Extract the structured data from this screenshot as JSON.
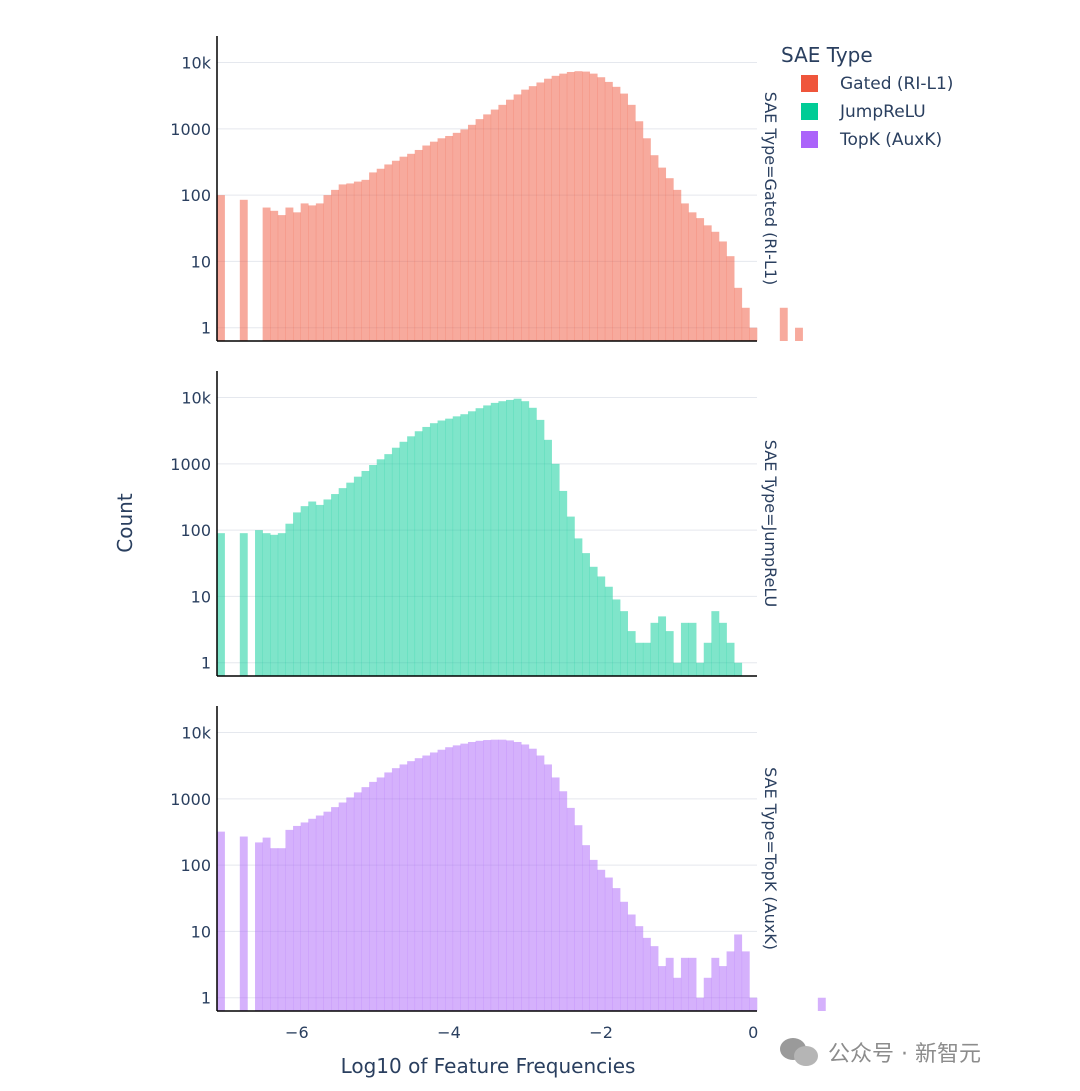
{
  "chart_data": {
    "type": "bar",
    "xlabel": "Log10 of Feature Frequencies",
    "ylabel": "Count",
    "xlim": [
      -7.05,
      0.05
    ],
    "ylim_log10": [
      -0.2,
      4.4
    ],
    "y_scale": "log",
    "x_ticks": [
      {
        "v": -6,
        "label": "−6"
      },
      {
        "v": -4,
        "label": "−4"
      },
      {
        "v": -2,
        "label": "−2"
      },
      {
        "v": 0,
        "label": "0"
      }
    ],
    "y_ticks": [
      {
        "v": 1,
        "label": "1"
      },
      {
        "v": 10,
        "label": "10"
      },
      {
        "v": 100,
        "label": "100"
      },
      {
        "v": 1000,
        "label": "1000"
      },
      {
        "v": 10000,
        "label": "10k"
      }
    ],
    "bin_start": -7.05,
    "bin_width": 0.1,
    "legend": {
      "title": "SAE Type",
      "position": "top-right"
    },
    "series": [
      {
        "name": "Gated (RI-L1)",
        "facet_label": "SAE Type=Gated (RI-L1)",
        "color": "#EF553B",
        "values": [
          100,
          0,
          0,
          85,
          0,
          0,
          65,
          58,
          50,
          65,
          55,
          75,
          70,
          75,
          100,
          120,
          145,
          150,
          160,
          170,
          220,
          250,
          290,
          330,
          380,
          420,
          480,
          560,
          640,
          720,
          780,
          870,
          980,
          1150,
          1400,
          1650,
          1950,
          2300,
          2750,
          3300,
          3900,
          4400,
          5000,
          5700,
          6300,
          6800,
          7200,
          7400,
          7300,
          6800,
          6000,
          5100,
          4300,
          3400,
          2300,
          1300,
          720,
          400,
          260,
          180,
          120,
          75,
          55,
          45,
          35,
          28,
          20,
          12,
          4,
          2,
          1,
          0,
          0,
          0,
          2,
          0,
          1,
          0,
          0,
          0
        ]
      },
      {
        "name": "JumpReLU",
        "facet_label": "SAE Type=JumpReLU",
        "color": "#00CC96",
        "values": [
          90,
          0,
          0,
          90,
          0,
          100,
          90,
          85,
          90,
          125,
          185,
          230,
          270,
          240,
          290,
          350,
          430,
          520,
          640,
          780,
          960,
          1170,
          1400,
          1750,
          2150,
          2600,
          3100,
          3600,
          4100,
          4500,
          4800,
          5200,
          5600,
          6200,
          6900,
          7600,
          8300,
          8800,
          9200,
          9600,
          8800,
          7000,
          4600,
          2300,
          1000,
          390,
          160,
          75,
          45,
          28,
          20,
          14,
          9,
          6,
          3,
          2,
          2,
          4,
          5,
          3,
          1,
          4,
          4,
          1,
          2,
          6,
          4,
          2,
          1
        ]
      },
      {
        "name": "TopK (AuxK)",
        "facet_label": "SAE Type=TopK (AuxK)",
        "color": "#AB63FA",
        "values": [
          320,
          0,
          0,
          270,
          0,
          220,
          260,
          180,
          180,
          340,
          390,
          440,
          500,
          560,
          640,
          750,
          880,
          1050,
          1250,
          1500,
          1800,
          2100,
          2500,
          2900,
          3300,
          3700,
          4100,
          4500,
          5000,
          5500,
          6000,
          6400,
          6800,
          7200,
          7500,
          7700,
          7800,
          7800,
          7600,
          7200,
          6600,
          5700,
          4500,
          3300,
          2100,
          1300,
          730,
          400,
          200,
          120,
          85,
          65,
          45,
          28,
          18,
          12,
          8,
          6,
          3,
          4,
          2,
          4,
          4,
          1,
          2,
          4,
          3,
          5,
          9,
          5,
          1,
          0,
          0,
          0,
          0,
          0,
          0,
          0,
          0,
          1
        ]
      }
    ]
  },
  "watermark": {
    "text": "公众号 · 新智元",
    "icon": "wechat-icon"
  }
}
